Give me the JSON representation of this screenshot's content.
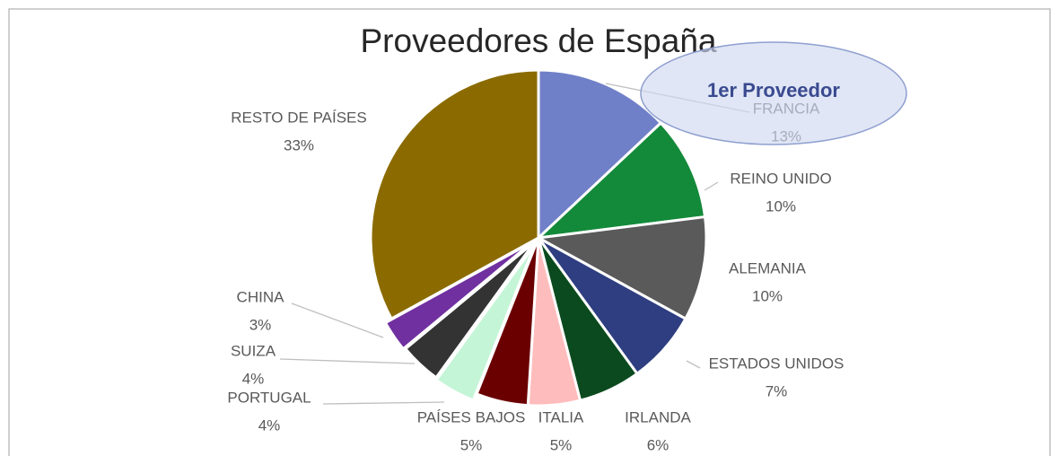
{
  "chart_data": {
    "type": "pie",
    "title": "Proveedores de España",
    "categories": [
      "FRANCIA",
      "REINO UNIDO",
      "ALEMANIA",
      "ESTADOS UNIDOS",
      "IRLANDA",
      "ITALIA",
      "PAÍSES BAJOS",
      "PORTUGAL",
      "SUIZA",
      "CHINA",
      "RESTO DE PAÍSES"
    ],
    "values": [
      13,
      10,
      10,
      7,
      6,
      5,
      5,
      4,
      4,
      3,
      33
    ],
    "value_labels": [
      "13%",
      "10%",
      "10%",
      "7%",
      "6%",
      "5%",
      "5%",
      "4%",
      "4%",
      "3%",
      "33%"
    ],
    "colors": [
      "#7080c8",
      "#138a3a",
      "#5a5a5a",
      "#2e3e80",
      "#0b4a1e",
      "#ffbcbc",
      "#6b0000",
      "#c4f5d6",
      "#333333",
      "#7030a0",
      "#8b6b00"
    ],
    "annotation": "1er Proveedor"
  }
}
